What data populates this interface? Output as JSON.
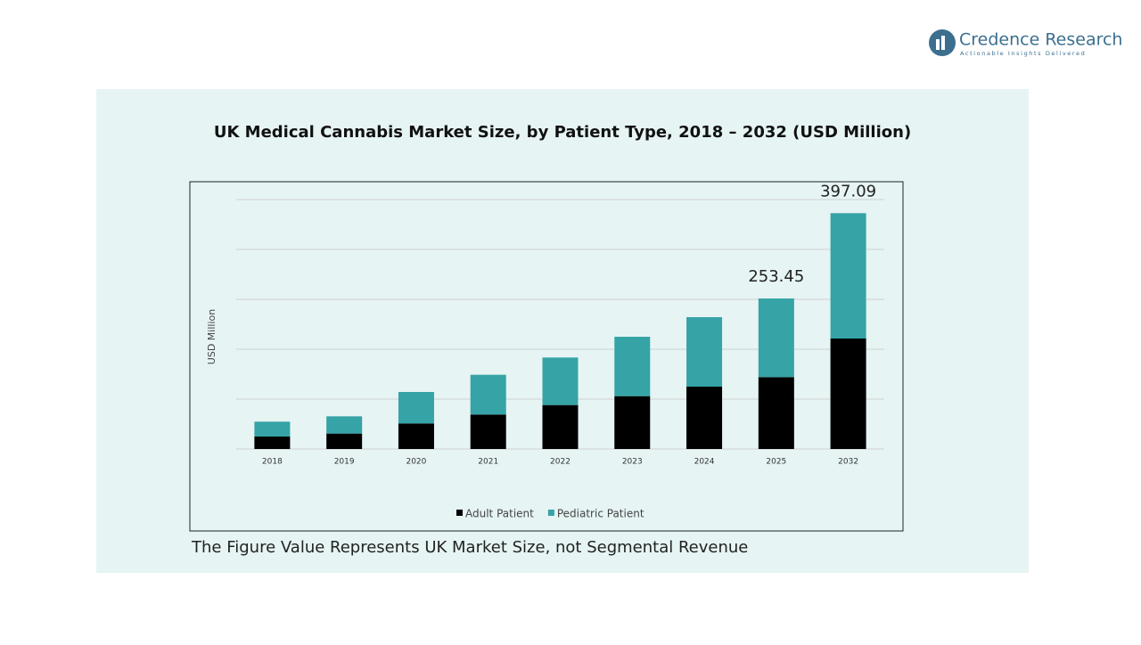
{
  "logo": {
    "name": "Credence Research",
    "tagline": "Actionable Insights Delivered"
  },
  "footnote": "The Figure Value Represents UK Market Size, not Segmental Revenue",
  "chart_data": {
    "type": "stacked-bar",
    "title": "UK Medical Cannabis Market Size, by Patient Type, 2018 – 2032 (USD Million)",
    "y_label": "USD Million",
    "categories": [
      "2018",
      "2019",
      "2020",
      "2021",
      "2022",
      "2023",
      "2024",
      "2025",
      "2032"
    ],
    "series": [
      {
        "name": "Adult Patient",
        "color": "#000000",
        "values": [
          21,
          26,
          43,
          58,
          74,
          89,
          105,
          121,
          186
        ]
      },
      {
        "name": "Pediatric Patient",
        "color": "#36a3a6",
        "values": [
          25,
          29,
          53,
          67,
          80,
          100,
          117,
          132.45,
          211.09
        ]
      }
    ],
    "total_labels": [
      null,
      null,
      null,
      null,
      null,
      null,
      null,
      253.45,
      397.09
    ],
    "ylim": [
      0,
      420
    ],
    "grid": true,
    "legend": "bottom"
  }
}
